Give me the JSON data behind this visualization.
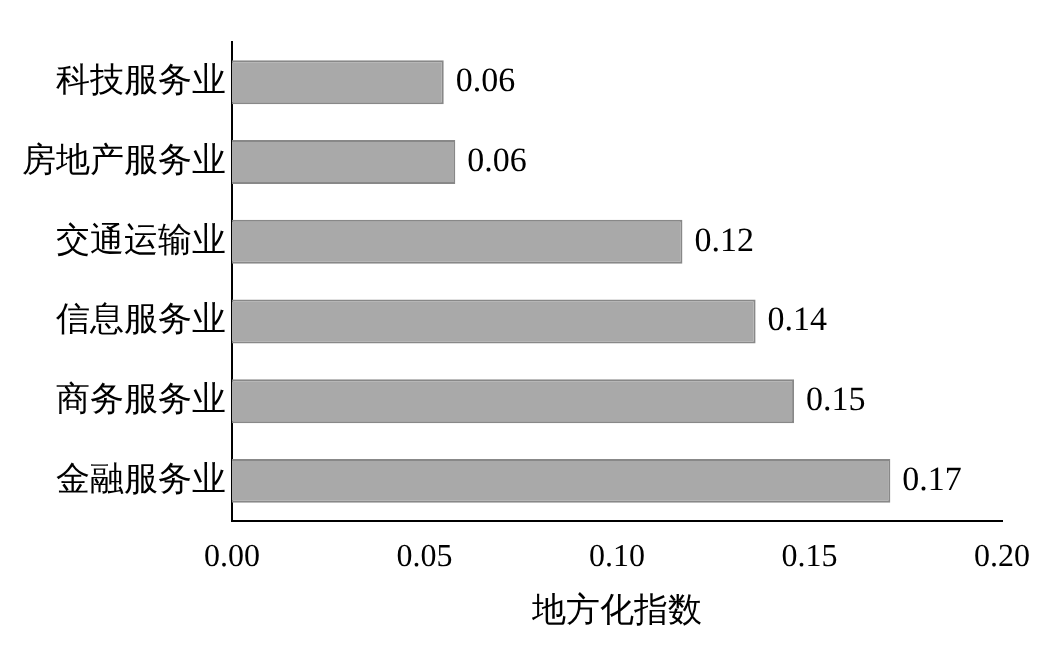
{
  "chart_data": {
    "type": "bar",
    "orientation": "horizontal",
    "xlabel": "地方化指数",
    "categories": [
      "科技服务业",
      "房地产服务业",
      "交通运输业",
      "信息服务业",
      "商务服务业",
      "金融服务业"
    ],
    "values": [
      0.055,
      0.058,
      0.117,
      0.136,
      0.146,
      0.171
    ],
    "value_labels": [
      "0.06",
      "0.06",
      "0.12",
      "0.14",
      "0.15",
      "0.17"
    ],
    "color": "#a9a9a9",
    "xlim": [
      0,
      0.2
    ],
    "xticks": [
      {
        "value": 0,
        "label": "0.00"
      },
      {
        "value": 0.05,
        "label": "0.05"
      },
      {
        "value": 0.1,
        "label": "0.10"
      },
      {
        "value": 0.15,
        "label": "0.15"
      },
      {
        "value": 0.2,
        "label": "0.20"
      }
    ],
    "grid": false,
    "legend": false
  }
}
